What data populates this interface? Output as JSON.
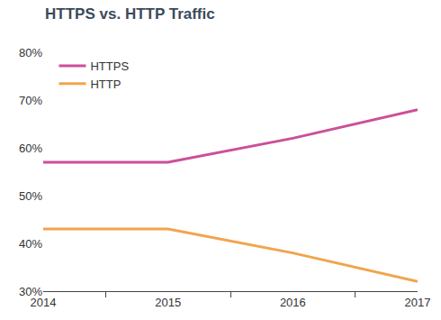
{
  "chart_data": {
    "type": "line",
    "title": "HTTPS vs. HTTP Traffic",
    "categories": [
      "2014",
      "2015",
      "2016",
      "2017"
    ],
    "series": [
      {
        "name": "HTTPS",
        "color": "#cc4f98",
        "values": [
          57,
          57,
          62,
          68
        ]
      },
      {
        "name": "HTTP",
        "color": "#f2a44c",
        "values": [
          43,
          43,
          38,
          32
        ]
      }
    ],
    "ylim": [
      30,
      80
    ],
    "yticks": [
      {
        "value": 30,
        "label": "30%"
      },
      {
        "value": 40,
        "label": "40%"
      },
      {
        "value": 50,
        "label": "50%"
      },
      {
        "value": 60,
        "label": "60%"
      },
      {
        "value": 70,
        "label": "70%"
      },
      {
        "value": 80,
        "label": "80%"
      }
    ],
    "grid": false,
    "legend": "top-left"
  }
}
